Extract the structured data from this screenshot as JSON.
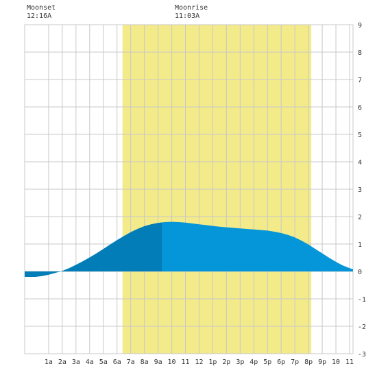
{
  "moon": {
    "moonset_label": "Moonset",
    "moonset_time": "12:16A",
    "moonrise_label": "Moonrise",
    "moonrise_time": "11:03A"
  },
  "colors": {
    "background": "#ffffff",
    "grid": "#c8c8c8",
    "daylight": "#f3ea8a",
    "tide_fill": "#0496d8",
    "tide_dark": "#027db8",
    "axis_text": "#333333"
  },
  "chart_data": {
    "type": "area",
    "title": "",
    "xlabel": "",
    "ylabel": "",
    "xlim": [
      -0.75,
      23.25
    ],
    "ylim": [
      -3,
      9
    ],
    "x_tick_labels": [
      "1a",
      "2a",
      "3a",
      "4a",
      "5a",
      "6a",
      "7a",
      "8a",
      "9a",
      "10",
      "11",
      "12",
      "1p",
      "2p",
      "3p",
      "4p",
      "5p",
      "6p",
      "7p",
      "8p",
      "9p",
      "10",
      "11"
    ],
    "x_tick_values": [
      1,
      2,
      3,
      4,
      5,
      6,
      7,
      8,
      9,
      10,
      11,
      12,
      13,
      14,
      15,
      16,
      17,
      18,
      19,
      20,
      21,
      22,
      23
    ],
    "y_ticks": [
      9,
      8,
      7,
      6,
      5,
      4,
      3,
      2,
      1,
      0,
      -1,
      -2,
      -3
    ],
    "daylight_span": [
      6.4,
      20.2
    ],
    "dark_shade_span": [
      -0.75,
      9.3
    ],
    "dark_shade_breaks": [
      0.1,
      9.3
    ],
    "series": [
      {
        "x": [
          -0.75,
          0,
          0.5,
          1,
          1.5,
          2,
          2.5,
          3,
          3.5,
          4,
          4.5,
          5,
          5.5,
          6,
          6.5,
          7,
          7.5,
          8,
          8.5,
          9,
          9.5,
          10,
          10.5,
          11,
          11.5,
          12,
          12.5,
          13,
          13.5,
          14,
          14.5,
          15,
          15.5,
          16,
          16.5,
          17,
          17.5,
          18,
          18.5,
          19,
          19.5,
          20,
          20.5,
          21,
          21.5,
          22,
          22.5,
          23,
          23.25
        ],
        "y": [
          -0.2,
          -0.2,
          -0.17,
          -0.12,
          -0.05,
          0.02,
          0.12,
          0.24,
          0.37,
          0.51,
          0.66,
          0.82,
          0.98,
          1.14,
          1.29,
          1.43,
          1.55,
          1.65,
          1.72,
          1.77,
          1.8,
          1.81,
          1.8,
          1.78,
          1.75,
          1.72,
          1.69,
          1.66,
          1.63,
          1.61,
          1.59,
          1.57,
          1.55,
          1.53,
          1.51,
          1.49,
          1.45,
          1.4,
          1.33,
          1.24,
          1.12,
          0.98,
          0.82,
          0.66,
          0.5,
          0.35,
          0.22,
          0.12,
          0.08
        ]
      }
    ]
  }
}
